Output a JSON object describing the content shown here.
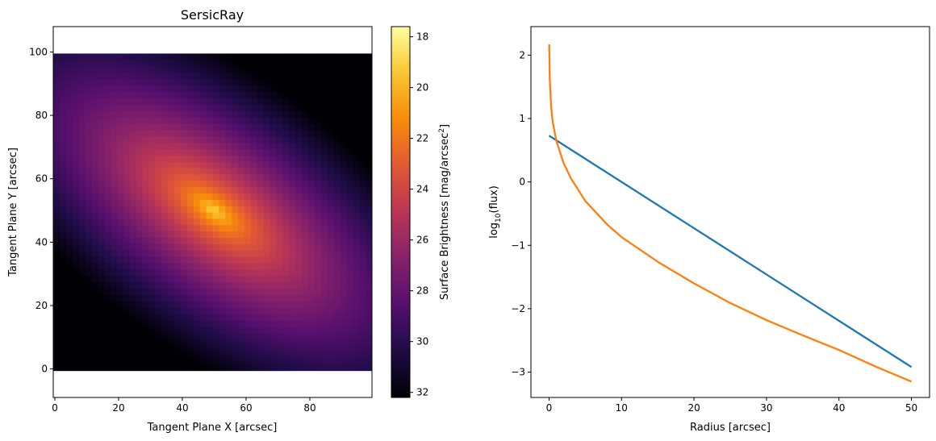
{
  "chart_data": [
    {
      "type": "heatmap",
      "title": "SersicRay",
      "xlabel": "Tangent Plane X [arcsec]",
      "ylabel": "Tangent Plane Y [arcsec]",
      "xlim": [
        -0.5,
        99.5
      ],
      "ylim": [
        -9,
        108
      ],
      "image_extent": [
        -0.5,
        99.5,
        -0.5,
        99.5
      ],
      "x_ticks": [
        0,
        20,
        40,
        60,
        80
      ],
      "y_ticks": [
        0,
        20,
        40,
        60,
        80,
        100
      ],
      "colormap": "inferno",
      "colormap_reversed": true,
      "source_center": [
        50,
        50
      ],
      "position_angle_deg": -37,
      "axis_ratio": 0.45,
      "effective_radius_arcsec": 10,
      "colorbar": {
        "label": "Surface Brightness [mag/arcsec",
        "label_superscript": "2",
        "label_suffix": "]",
        "range": [
          32.2,
          17.6
        ],
        "ticks": [
          18,
          20,
          22,
          24,
          26,
          28,
          30,
          32
        ]
      }
    },
    {
      "type": "line",
      "xlabel": "Radius [arcsec]",
      "ylabel": "log",
      "ylabel_subscript": "10",
      "ylabel_suffix": "(flux)",
      "xlim": [
        -2.5,
        52.5
      ],
      "ylim": [
        -3.4,
        2.45
      ],
      "x_ticks": [
        0,
        10,
        20,
        30,
        40,
        50
      ],
      "y_ticks": [
        -3,
        -2,
        -1,
        0,
        1,
        2
      ],
      "series": [
        {
          "color": "#1f77b4",
          "x": [
            0,
            10,
            20,
            30,
            40,
            50
          ],
          "y": [
            0.73,
            0.0,
            -0.73,
            -1.46,
            -2.19,
            -2.92
          ]
        },
        {
          "color": "#ff7f0e",
          "x": [
            0.02,
            0.1,
            0.3,
            0.5,
            1,
            2,
            3,
            5,
            8,
            10,
            15,
            20,
            25,
            30,
            35,
            40,
            45,
            50
          ],
          "y": [
            2.17,
            1.62,
            1.17,
            0.95,
            0.65,
            0.3,
            0.06,
            -0.3,
            -0.67,
            -0.87,
            -1.26,
            -1.6,
            -1.91,
            -2.18,
            -2.42,
            -2.65,
            -2.91,
            -3.15
          ]
        }
      ]
    }
  ]
}
